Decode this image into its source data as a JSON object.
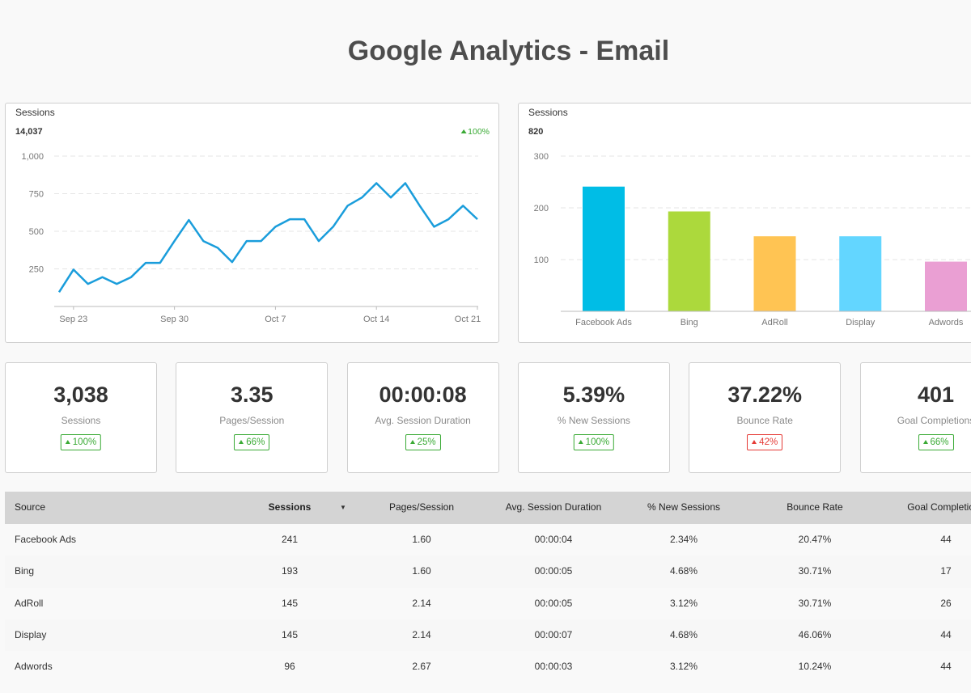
{
  "title": "Google Analytics - Email",
  "chart_data": [
    {
      "type": "line",
      "title": "Sessions",
      "total": "14,037",
      "change": "100%",
      "change_color": "#3aaa35",
      "categories": [
        null,
        "Sep 23",
        null,
        null,
        null,
        null,
        null,
        null,
        "Sep 30",
        null,
        null,
        null,
        null,
        null,
        null,
        "Oct 7",
        null,
        null,
        null,
        null,
        null,
        null,
        "Oct 14",
        null,
        null,
        null,
        null,
        null,
        null,
        "Oct 21"
      ],
      "values": [
        95,
        245,
        150,
        195,
        150,
        195,
        290,
        290,
        435,
        575,
        435,
        390,
        295,
        435,
        435,
        530,
        580,
        580,
        435,
        530,
        670,
        725,
        820,
        725,
        820,
        670,
        530,
        580,
        670,
        580
      ],
      "color": "#1a9ddb",
      "ylim": [
        0,
        1000
      ],
      "yticks": [
        250,
        500,
        750,
        {
          "value": 1000,
          "label": "1,000"
        }
      ],
      "grid": true
    },
    {
      "type": "bar",
      "title": "Sessions",
      "total": "820",
      "categories": [
        "Facebook Ads",
        "Bing",
        "AdRoll",
        "Display",
        "Adwords"
      ],
      "values": [
        241,
        193,
        145,
        145,
        96
      ],
      "colors": [
        "#00bde6",
        "#acd93c",
        "#ffc453",
        "#63d6ff",
        "#ea9fd3"
      ],
      "ylim": [
        0,
        300
      ],
      "yticks": [
        100,
        200,
        300
      ],
      "grid": true
    }
  ],
  "kpis": [
    {
      "value": "3,038",
      "label": "Sessions",
      "change": "100%",
      "change_color": "#3aaa35"
    },
    {
      "value": "3.35",
      "label": "Pages/Session",
      "change": "66%",
      "change_color": "#3aaa35"
    },
    {
      "value": "00:00:08",
      "label": "Avg. Session Duration",
      "change": "25%",
      "change_color": "#3aaa35"
    },
    {
      "value": "5.39%",
      "label": "% New Sessions",
      "change": "100%",
      "change_color": "#3aaa35"
    },
    {
      "value": "37.22%",
      "label": "Bounce Rate",
      "change": "42%",
      "change_color": "#e53935"
    },
    {
      "value": "401",
      "label": "Goal Completions",
      "change": "66%",
      "change_color": "#3aaa35"
    }
  ],
  "table": {
    "columns": [
      "Source",
      "Sessions",
      "Pages/Session",
      "Avg. Session Duration",
      "% New Sessions",
      "Bounce Rate",
      "Goal Completions"
    ],
    "rows": [
      [
        "Facebook Ads",
        "241",
        "1.60",
        "00:00:04",
        "2.34%",
        "20.47%",
        "44"
      ],
      [
        "Bing",
        "193",
        "1.60",
        "00:00:05",
        "4.68%",
        "30.71%",
        "17"
      ],
      [
        "AdRoll",
        "145",
        "2.14",
        "00:00:05",
        "3.12%",
        "30.71%",
        "26"
      ],
      [
        "Display",
        "145",
        "2.14",
        "00:00:07",
        "4.68%",
        "46.06%",
        "44"
      ],
      [
        "Adwords",
        "96",
        "2.67",
        "00:00:03",
        "3.12%",
        "10.24%",
        "44"
      ]
    ]
  }
}
